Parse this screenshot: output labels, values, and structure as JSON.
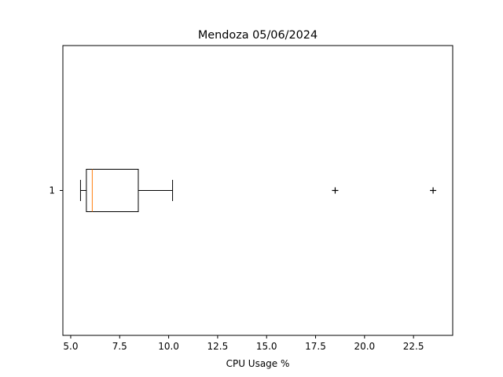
{
  "chart_data": {
    "type": "boxplot",
    "orientation": "horizontal",
    "title": "Mendoza 05/06/2024",
    "xlabel": "CPU Usage %",
    "ylabel": "",
    "xlim": [
      4.6,
      24.5
    ],
    "x_ticks": [
      5.0,
      7.5,
      10.0,
      12.5,
      15.0,
      17.5,
      20.0,
      22.5
    ],
    "x_tick_labels": [
      "5.0",
      "7.5",
      "10.0",
      "12.5",
      "15.0",
      "17.5",
      "20.0",
      "22.5"
    ],
    "y_tick_labels": [
      "1"
    ],
    "grid": false,
    "series": [
      {
        "category": "1",
        "whisker_low": 5.5,
        "q1": 5.8,
        "median": 6.1,
        "q3": 8.45,
        "whisker_high": 10.2,
        "outliers": [
          18.5,
          23.5
        ]
      }
    ],
    "colors": {
      "box": "#000000",
      "median": "#ff7f0e",
      "axes": "#000000"
    }
  }
}
